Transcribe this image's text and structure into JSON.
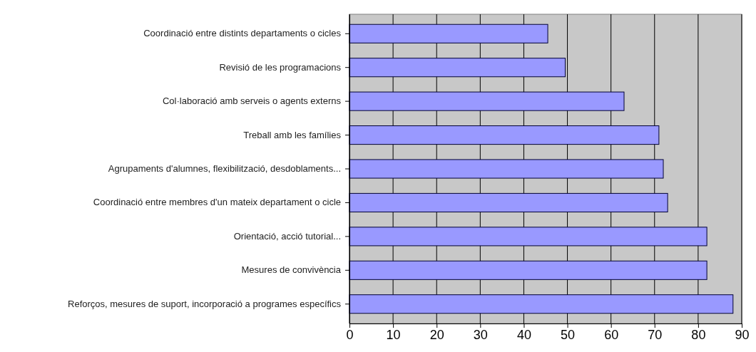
{
  "chart_data": {
    "type": "bar",
    "orientation": "horizontal",
    "categories": [
      "Coordinació entre distints departaments o cicles",
      "Revisió de les programacions",
      "Col·laboració amb serveis o agents externs",
      "Treball amb les famílies",
      "Agrupaments d'alumnes, flexibilització, desdoblaments...",
      "Coordinació entre membres d'un mateix departament o cicle",
      "Orientació, acció tutorial...",
      "Mesures de convivència",
      "Reforços, mesures de suport, incorporació a programes específics"
    ],
    "values": [
      45.5,
      49.5,
      63,
      71,
      72,
      73,
      82,
      82,
      88
    ],
    "color": "#9999ff",
    "xlim": [
      0,
      90
    ],
    "xticks": [
      0,
      10,
      20,
      30,
      40,
      50,
      60,
      70,
      80,
      90
    ],
    "grid": "x"
  }
}
